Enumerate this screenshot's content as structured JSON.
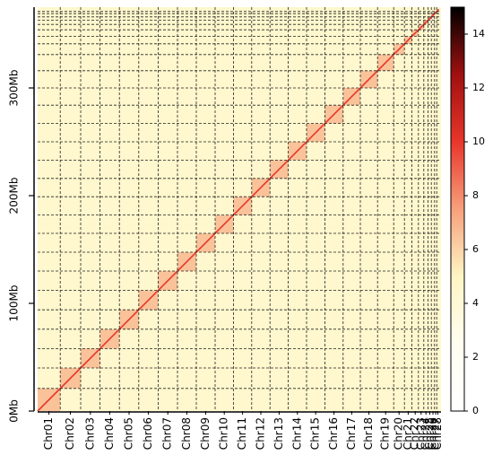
{
  "chart_data": {
    "type": "heatmap",
    "categories": [
      "Chr01",
      "Chr02",
      "Chr03",
      "Chr04",
      "Chr05",
      "Chr06",
      "Chr07",
      "Chr08",
      "Chr09",
      "Chr10",
      "Chr11",
      "Chr12",
      "Chr13",
      "Chr14",
      "Chr15",
      "Chr16",
      "Chr17",
      "Chr18",
      "Chr19",
      "Chr20",
      "Chr21",
      "Chr22",
      "Chr23",
      "Chr24",
      "Chr25",
      "Chr26",
      "Chr27",
      "Chr28"
    ],
    "chromosome_sizes": [
      21,
      19,
      18,
      18,
      18,
      18,
      18,
      17.5,
      17.5,
      17,
      17,
      17,
      17,
      17,
      17,
      17,
      16,
      16,
      15,
      10,
      7,
      6,
      5,
      4,
      3,
      3,
      2,
      2
    ],
    "intra_values": [
      6.5,
      6.5,
      6.5,
      6.5,
      6.5,
      6.5,
      6.5,
      6.5,
      6.5,
      6.5,
      6.5,
      6.5,
      6.5,
      6.5,
      6.5,
      6.5,
      6.5,
      6.5,
      6.5,
      6.5,
      6.5,
      6.5,
      6.5,
      6.5,
      6.5,
      6.5,
      6.5,
      6.5
    ],
    "inter_value": 4.5,
    "diagonal_value": 10,
    "ylim": [
      0,
      375
    ],
    "yticks": [
      {
        "value": 0,
        "label": "0Mb"
      },
      {
        "value": 100,
        "label": "100Mb"
      },
      {
        "value": 200,
        "label": "200Mb"
      },
      {
        "value": 300,
        "label": "300Mb"
      }
    ],
    "zlim": [
      0,
      15
    ],
    "zticks": [
      0,
      2,
      4,
      6,
      8,
      10,
      12,
      14
    ],
    "colormap": [
      "#ffffff",
      "#fffdf0",
      "#fff5c4",
      "#f7a07c",
      "#e8362a",
      "#a01010",
      "#000000"
    ],
    "grid": true
  }
}
